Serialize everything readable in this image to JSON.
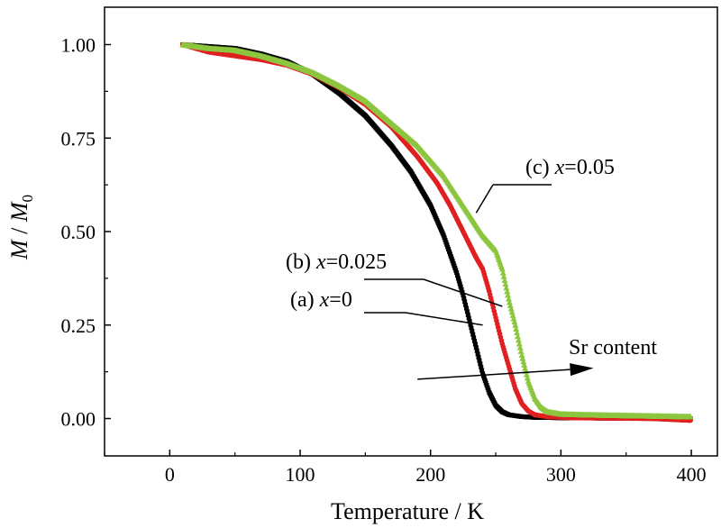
{
  "chart_data": {
    "type": "scatter",
    "xlabel": "Temperature / K",
    "ylabel_parts": {
      "m": "M",
      "sep": " / ",
      "m0": "M",
      "sub": "0"
    },
    "xlim": [
      -50,
      420
    ],
    "ylim": [
      -0.1,
      1.1
    ],
    "x_ticks": [
      0,
      100,
      200,
      300,
      400
    ],
    "x_tick_labels": [
      "0",
      "100",
      "200",
      "300",
      "400"
    ],
    "y_ticks": [
      0.0,
      0.25,
      0.5,
      0.75,
      1.0
    ],
    "y_tick_labels": [
      "0.00",
      "0.25",
      "0.50",
      "0.75",
      "1.00"
    ],
    "grid": false,
    "series": [
      {
        "label": "(a) x=0",
        "label_prefix": "(a) ",
        "label_var": "x",
        "label_value": "=0",
        "color": "#000000",
        "marker": "square",
        "x": [
          10,
          30,
          50,
          70,
          90,
          110,
          130,
          150,
          170,
          185,
          200,
          210,
          220,
          225,
          230,
          235,
          240,
          245,
          250,
          255,
          260,
          270,
          280,
          300,
          330,
          360,
          400
        ],
        "y": [
          1.0,
          0.995,
          0.99,
          0.975,
          0.955,
          0.92,
          0.87,
          0.81,
          0.73,
          0.66,
          0.57,
          0.49,
          0.39,
          0.33,
          0.26,
          0.19,
          0.12,
          0.07,
          0.035,
          0.018,
          0.01,
          0.005,
          0.003,
          0.002,
          0.001,
          0.001,
          0.0
        ]
      },
      {
        "label": "(b) x=0.025",
        "label_prefix": "(b) ",
        "label_var": "x",
        "label_value": "=0.025",
        "color": "#e02020",
        "marker": "circle",
        "x": [
          10,
          30,
          50,
          70,
          90,
          110,
          130,
          150,
          170,
          190,
          205,
          215,
          225,
          235,
          240,
          245,
          250,
          255,
          260,
          265,
          270,
          275,
          280,
          290,
          310,
          340,
          370,
          400
        ],
        "y": [
          1.0,
          0.98,
          0.97,
          0.96,
          0.945,
          0.92,
          0.885,
          0.84,
          0.78,
          0.7,
          0.63,
          0.57,
          0.5,
          0.43,
          0.4,
          0.34,
          0.27,
          0.2,
          0.14,
          0.08,
          0.04,
          0.02,
          0.01,
          0.005,
          0.002,
          0.001,
          0.0,
          -0.005
        ]
      },
      {
        "label": "(c) x=0.05",
        "label_prefix": "(c) ",
        "label_var": "x",
        "label_value": "=0.05",
        "color": "#8cc63f",
        "marker": "triangle",
        "x": [
          10,
          30,
          50,
          70,
          90,
          110,
          130,
          150,
          170,
          190,
          210,
          225,
          240,
          250,
          255,
          260,
          265,
          270,
          275,
          280,
          285,
          290,
          300,
          320,
          350,
          400
        ],
        "y": [
          1.0,
          0.99,
          0.985,
          0.97,
          0.95,
          0.925,
          0.89,
          0.85,
          0.79,
          0.73,
          0.65,
          0.57,
          0.49,
          0.45,
          0.4,
          0.32,
          0.25,
          0.17,
          0.1,
          0.055,
          0.03,
          0.018,
          0.012,
          0.01,
          0.008,
          0.005
        ]
      }
    ],
    "annotation": {
      "text": "Sr content",
      "arrow_from": [
        190,
        0.105
      ],
      "arrow_to": [
        325,
        0.135
      ]
    }
  }
}
